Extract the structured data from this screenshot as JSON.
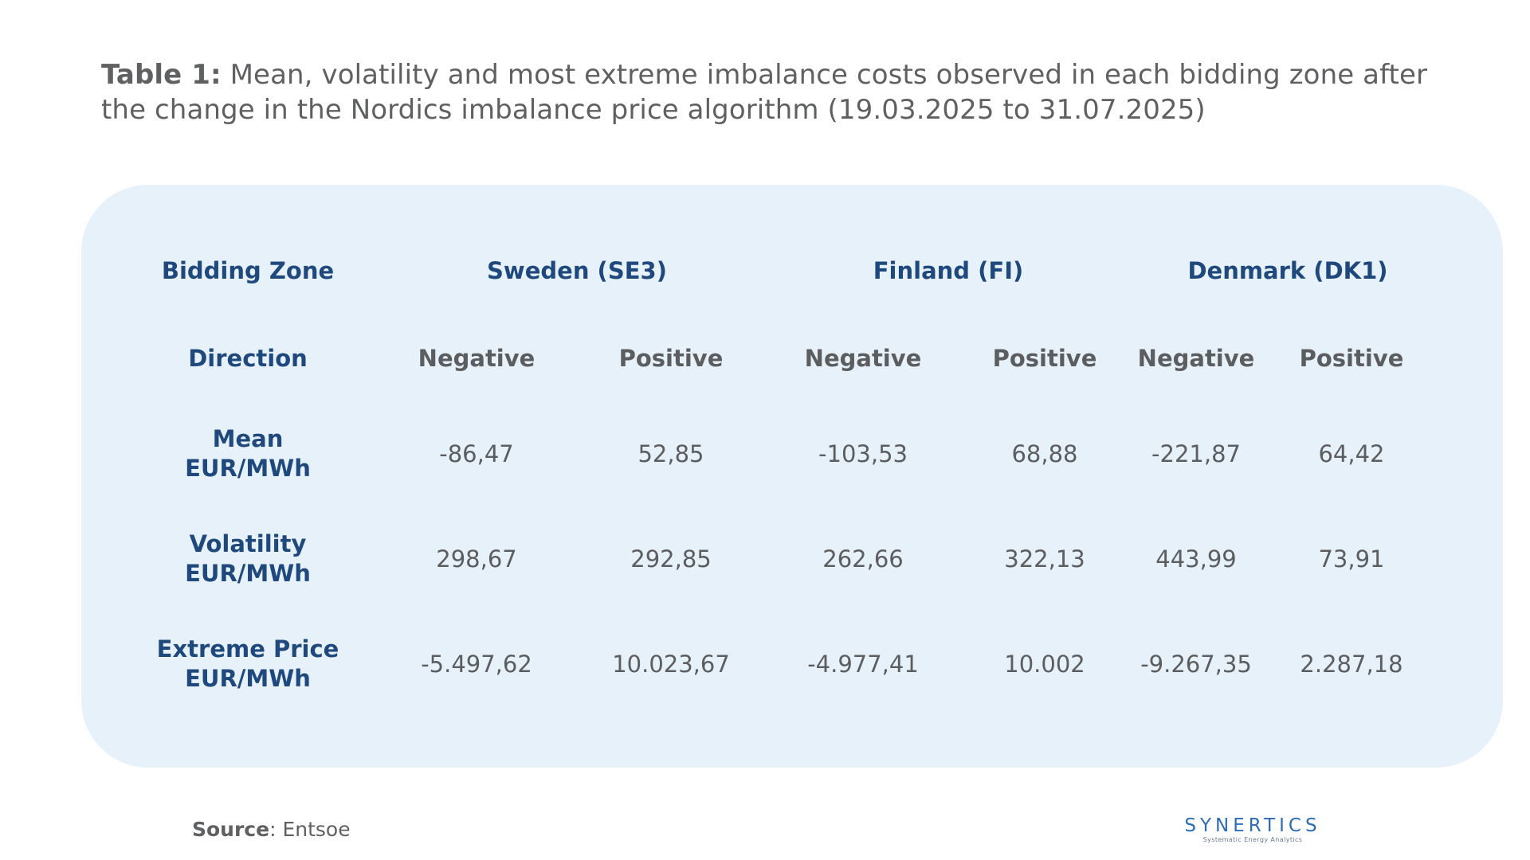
{
  "caption": {
    "label": "Table 1:",
    "text": "Mean, volatility and most extreme imbalance costs observed in each bidding zone after the change in the Nordics imbalance price algorithm (19.03.2025 to 31.07.2025)"
  },
  "table": {
    "zone_header": "Bidding Zone",
    "zones": [
      "Sweden (SE3)",
      "Finland (FI)",
      "Denmark (DK1)"
    ],
    "direction_header": "Direction",
    "directions": [
      "Negative",
      "Positive",
      "Negative",
      "Positive",
      "Negative",
      "Positive"
    ],
    "rows": [
      {
        "label_line1": "Mean",
        "label_line2": "EUR/MWh",
        "values": [
          "-86,47",
          "52,85",
          "-103,53",
          "68,88",
          "-221,87",
          "64,42"
        ]
      },
      {
        "label_line1": "Volatility",
        "label_line2": "EUR/MWh",
        "values": [
          "298,67",
          "292,85",
          "262,66",
          "322,13",
          "443,99",
          "73,91"
        ]
      },
      {
        "label_line1": "Extreme Price",
        "label_line2": "EUR/MWh",
        "values": [
          "-5.497,62",
          "10.023,67",
          "-4.977,41",
          "10.002",
          "-9.267,35",
          "2.287,18"
        ]
      }
    ]
  },
  "source": {
    "label": "Source",
    "text": ": Entsoe"
  },
  "logo": {
    "name": "SYNERTICS",
    "tagline": "Systematic Energy Analytics",
    "color": "#2e6cb5"
  },
  "colors": {
    "panel_background": "#e7f1fa",
    "header_blue": "#1f497d",
    "text_gray": "#5c5d5f"
  }
}
